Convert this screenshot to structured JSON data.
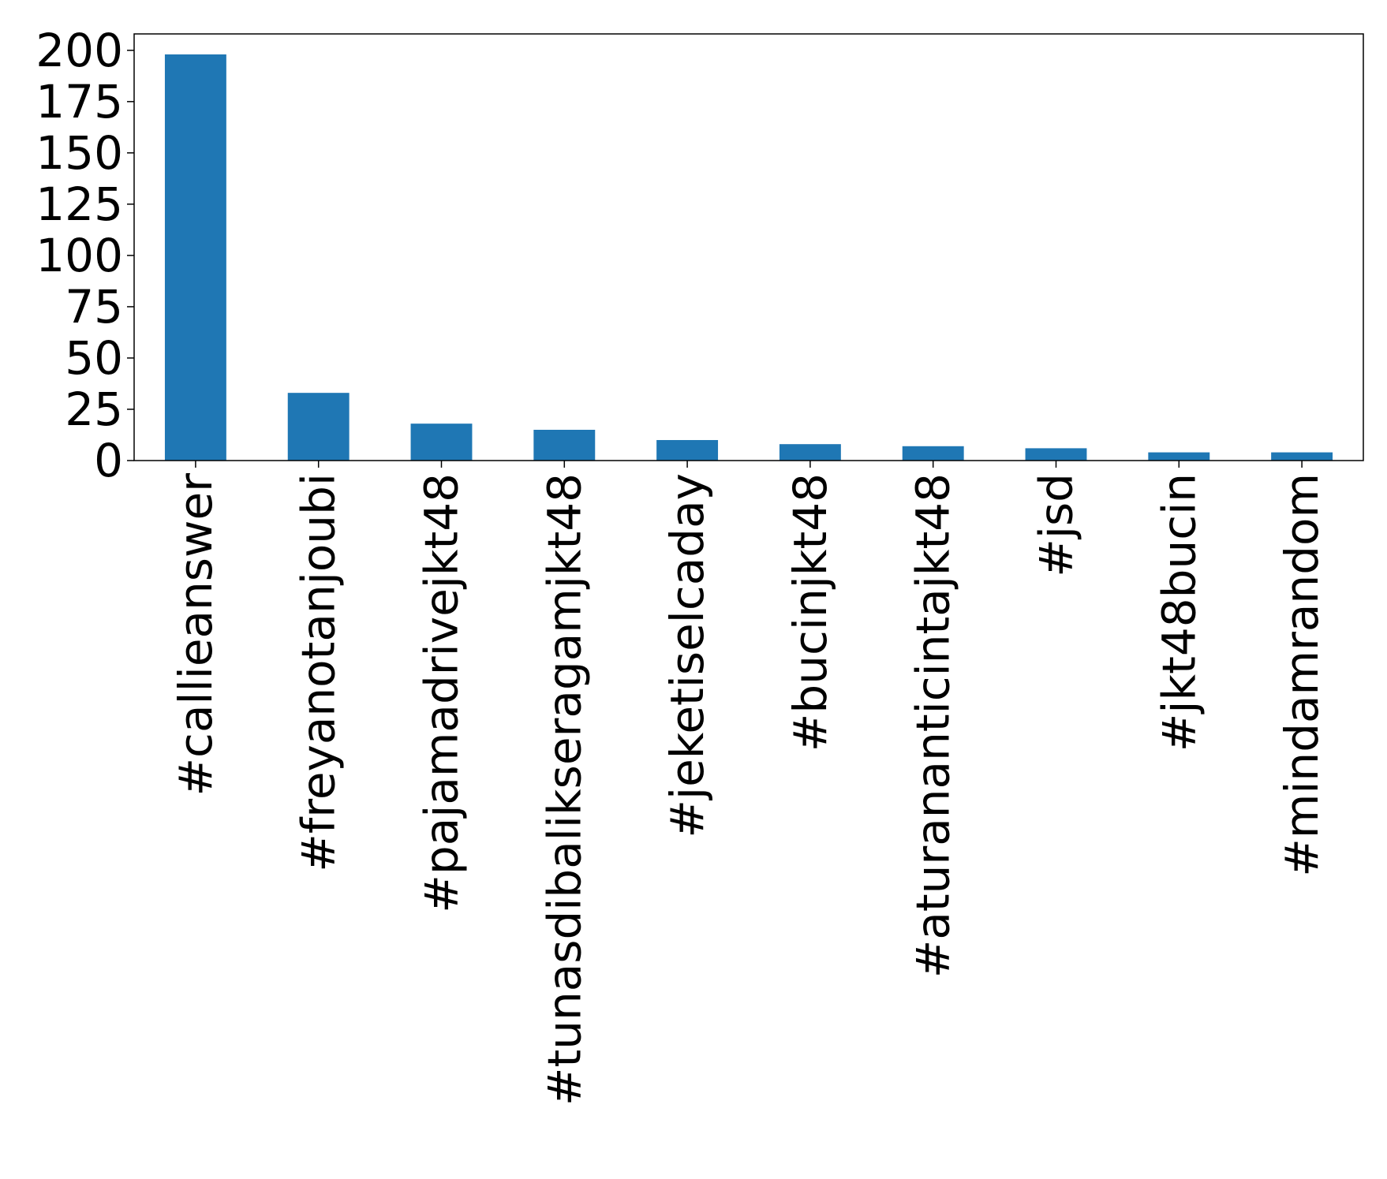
{
  "chart_data": {
    "type": "bar",
    "title": "",
    "xlabel": "",
    "ylabel": "",
    "categories": [
      "#callieanswer",
      "#freyanotanjoubi",
      "#pajamadrivejkt48",
      "#tunasdibalikseragamjkt48",
      "#jeketiselcaday",
      "#bucinjkt48",
      "#aturananticintajkt48",
      "#jsd",
      "#jkt48bucin",
      "#mindamrandom"
    ],
    "values": [
      198,
      33,
      18,
      15,
      10,
      8,
      7,
      6,
      4,
      4
    ],
    "ylim": [
      0,
      208
    ],
    "yticks": [
      0,
      25,
      50,
      75,
      100,
      125,
      150,
      175,
      200
    ],
    "bar_color": "#1f77b4",
    "grid": false,
    "legend": "none"
  }
}
